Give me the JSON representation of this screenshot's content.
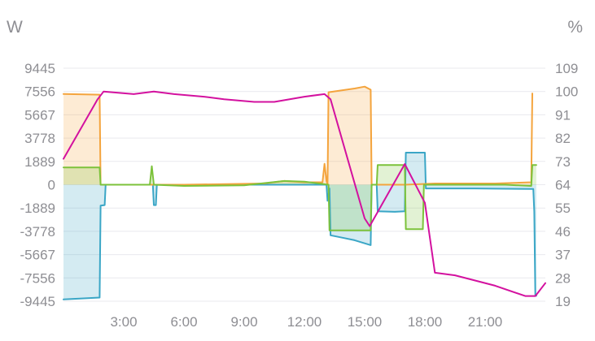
{
  "chart_data": {
    "type": "line",
    "left_unit": "W",
    "right_unit": "%",
    "ylim": [
      -9445,
      9445
    ],
    "y2lim": [
      19,
      109
    ],
    "y_ticks": [
      9445,
      7556,
      5667,
      3778,
      1889,
      0,
      -1889,
      -3778,
      -5667,
      -7556,
      -9445
    ],
    "y_tick_labels": [
      "9445",
      "7556",
      "5667",
      "3778",
      "1889",
      "0",
      "-1889",
      "-3778",
      "-5667",
      "-7556",
      "-9445"
    ],
    "y2_ticks": [
      109,
      100,
      91,
      82,
      73,
      64,
      55,
      46,
      37,
      28,
      19
    ],
    "y2_tick_labels": [
      "109",
      "100",
      "91",
      "82",
      "73",
      "64",
      "55",
      "46",
      "37",
      "28",
      "19"
    ],
    "xlim": [
      0,
      24
    ],
    "x_ticks": [
      3,
      6,
      9,
      12,
      15,
      18,
      21
    ],
    "x_tick_labels": [
      "3:00",
      "6:00",
      "9:00",
      "12:00",
      "15:00",
      "18:00",
      "21:00"
    ],
    "grid": true,
    "legend": "none",
    "series": [
      {
        "color": "#3aa6c6",
        "axis": "left",
        "fill": true,
        "points": [
          [
            0,
            -9300
          ],
          [
            1.8,
            -9150
          ],
          [
            1.85,
            -1700
          ],
          [
            2.05,
            -1650
          ],
          [
            2.1,
            0
          ],
          [
            4.45,
            0
          ],
          [
            4.5,
            -1650
          ],
          [
            4.6,
            -1650
          ],
          [
            4.65,
            0
          ],
          [
            13.1,
            0
          ],
          [
            13.15,
            -1300
          ],
          [
            13.25,
            -300
          ],
          [
            13.3,
            -4100
          ],
          [
            13.9,
            -4300
          ],
          [
            14.5,
            -4500
          ],
          [
            15.3,
            -4900
          ],
          [
            15.35,
            0
          ],
          [
            15.6,
            0
          ],
          [
            15.65,
            -2150
          ],
          [
            16.5,
            -2200
          ],
          [
            17.0,
            -2150
          ],
          [
            17.05,
            2600
          ],
          [
            18.0,
            2600
          ],
          [
            18.05,
            -300
          ],
          [
            20.5,
            -300
          ],
          [
            23.4,
            -350
          ],
          [
            23.45,
            -2200
          ],
          [
            23.5,
            -9000
          ],
          [
            23.55,
            -9000
          ]
        ]
      },
      {
        "color": "#f4a43d",
        "axis": "left",
        "fill": true,
        "points": [
          [
            0,
            7350
          ],
          [
            1.8,
            7300
          ],
          [
            1.85,
            0
          ],
          [
            6.0,
            0
          ],
          [
            10.0,
            100
          ],
          [
            11.0,
            300
          ],
          [
            12.0,
            200
          ],
          [
            12.9,
            200
          ],
          [
            13.0,
            1700
          ],
          [
            13.1,
            300
          ],
          [
            13.15,
            0
          ],
          [
            13.2,
            7500
          ],
          [
            14.5,
            7800
          ],
          [
            15.0,
            7950
          ],
          [
            15.3,
            7700
          ],
          [
            15.35,
            0
          ],
          [
            17.0,
            0
          ],
          [
            18.5,
            100
          ],
          [
            20.0,
            100
          ],
          [
            21.5,
            100
          ],
          [
            23.3,
            200
          ],
          [
            23.35,
            7400
          ]
        ]
      },
      {
        "color": "#7cc23b",
        "axis": "left",
        "fill": true,
        "points": [
          [
            0,
            1400
          ],
          [
            1.8,
            1400
          ],
          [
            1.85,
            0
          ],
          [
            4.3,
            0
          ],
          [
            4.4,
            1500
          ],
          [
            4.5,
            0
          ],
          [
            6.0,
            -100
          ],
          [
            9.0,
            -50
          ],
          [
            11.0,
            300
          ],
          [
            12.0,
            250
          ],
          [
            13.2,
            0
          ],
          [
            13.25,
            -3700
          ],
          [
            15.3,
            -3700
          ],
          [
            15.35,
            0
          ],
          [
            15.6,
            0
          ],
          [
            15.65,
            1600
          ],
          [
            17.0,
            1600
          ],
          [
            17.05,
            -3600
          ],
          [
            17.9,
            -3600
          ],
          [
            17.95,
            0
          ],
          [
            20.0,
            0
          ],
          [
            22.0,
            0
          ],
          [
            23.3,
            -100
          ],
          [
            23.35,
            1600
          ],
          [
            23.55,
            1600
          ]
        ]
      },
      {
        "color": "#d3119f",
        "axis": "right",
        "fill": false,
        "points": [
          [
            0,
            74
          ],
          [
            1.7,
            97
          ],
          [
            2.0,
            100
          ],
          [
            3.5,
            99
          ],
          [
            4.5,
            100
          ],
          [
            5.5,
            99
          ],
          [
            7.0,
            98
          ],
          [
            8.0,
            97
          ],
          [
            9.5,
            96
          ],
          [
            10.5,
            96
          ],
          [
            12.0,
            98
          ],
          [
            13.0,
            99
          ],
          [
            13.3,
            97
          ],
          [
            15.0,
            51
          ],
          [
            15.25,
            48
          ],
          [
            17.0,
            72
          ],
          [
            18.0,
            57
          ],
          [
            18.5,
            30
          ],
          [
            19.5,
            29
          ],
          [
            20.5,
            27
          ],
          [
            21.5,
            25
          ],
          [
            23.0,
            21
          ],
          [
            23.5,
            21
          ],
          [
            24,
            26
          ]
        ]
      }
    ]
  }
}
